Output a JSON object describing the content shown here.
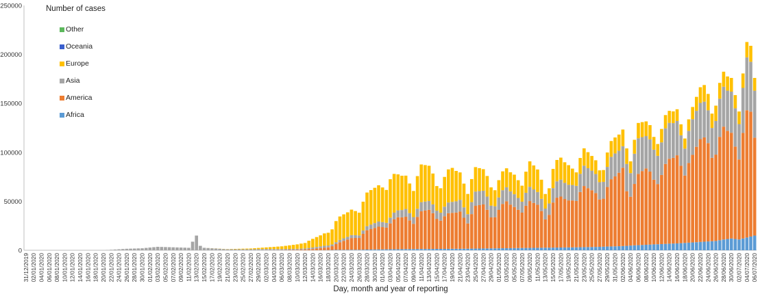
{
  "chart_data": {
    "type": "bar",
    "stacked": true,
    "legend_title": "Number of cases",
    "xlabel": "Day, month and year of reporting",
    "ylabel": "",
    "ylim": [
      0,
      250000
    ],
    "y_ticks": [
      0,
      50000,
      100000,
      150000,
      200000,
      250000
    ],
    "x_tick_labels": [
      "31/12/2019",
      "02/01/2020",
      "04/01/2020",
      "06/01/2020",
      "08/01/2020",
      "10/01/2020",
      "12/01/2020",
      "14/01/2020",
      "16/01/2020",
      "18/01/2020",
      "20/01/2020",
      "22/01/2020",
      "24/01/2020",
      "26/01/2020",
      "28/01/2020",
      "30/01/2020",
      "01/02/2020",
      "03/02/2020",
      "05/02/2020",
      "07/02/2020",
      "09/02/2020",
      "11/02/2020",
      "13/02/2020",
      "15/02/2020",
      "17/02/2020",
      "19/02/2020",
      "21/02/2020",
      "23/02/2020",
      "25/02/2020",
      "27/02/2020",
      "29/02/2020",
      "02/03/2020",
      "04/03/2020",
      "06/03/2020",
      "08/03/2020",
      "10/03/2020",
      "12/03/2020",
      "14/03/2020",
      "16/03/2020",
      "18/03/2020",
      "20/03/2020",
      "22/03/2020",
      "24/03/2020",
      "26/03/2020",
      "28/03/2020",
      "30/03/2020",
      "01/04/2020",
      "03/04/2020",
      "05/04/2020",
      "07/04/2020",
      "09/04/2020",
      "11/04/2020",
      "13/04/2020",
      "15/04/2020",
      "17/04/2020",
      "19/04/2020",
      "21/04/2020",
      "23/04/2020",
      "25/04/2020",
      "27/04/2020",
      "29/04/2020",
      "01/05/2020",
      "03/05/2020",
      "05/05/2020",
      "07/05/2020",
      "09/05/2020",
      "11/05/2020",
      "13/05/2020",
      "15/05/2020",
      "17/05/2020",
      "19/05/2020",
      "21/05/2020",
      "23/05/2020",
      "25/05/2020",
      "27/05/2020",
      "29/05/2020",
      "31/05/2020",
      "02/06/2020",
      "04/06/2020",
      "06/06/2020",
      "08/06/2020",
      "10/06/2020",
      "12/06/2020",
      "14/06/2020",
      "16/06/2020",
      "18/06/2020",
      "20/06/2020",
      "22/06/2020",
      "24/06/2020",
      "26/06/2020",
      "28/06/2020",
      "30/06/2020",
      "02/07/2020",
      "04/07/2020",
      "06/07/2020"
    ],
    "legend": [
      {
        "name": "Other",
        "color": "#5cb85c"
      },
      {
        "name": "Oceania",
        "color": "#3a5fcd"
      },
      {
        "name": "Europe",
        "color": "#ffc000"
      },
      {
        "name": "Asia",
        "color": "#a5a5a5"
      },
      {
        "name": "America",
        "color": "#ed7d31"
      },
      {
        "name": "Africa",
        "color": "#5b9bd5"
      }
    ],
    "series_order": [
      "Africa",
      "America",
      "Asia",
      "Europe",
      "Oceania",
      "Other"
    ],
    "num_days": 189,
    "key_points": [
      {
        "day": 0,
        "africa": 0,
        "america": 0,
        "asia": 0,
        "europe": 0
      },
      {
        "day": 20,
        "africa": 0,
        "america": 0,
        "asia": 0,
        "europe": 0
      },
      {
        "day": 26,
        "africa": 0,
        "america": 0,
        "asia": 1500,
        "europe": 0
      },
      {
        "day": 30,
        "africa": 0,
        "america": 0,
        "asia": 2000,
        "europe": 0
      },
      {
        "day": 34,
        "africa": 0,
        "america": 0,
        "asia": 3500,
        "europe": 0
      },
      {
        "day": 38,
        "africa": 0,
        "america": 0,
        "asia": 3000,
        "europe": 0
      },
      {
        "day": 42,
        "africa": 0,
        "america": 0,
        "asia": 2500,
        "europe": 0
      },
      {
        "day": 44,
        "africa": 0,
        "america": 0,
        "asia": 15000,
        "europe": 0
      },
      {
        "day": 45,
        "africa": 0,
        "america": 0,
        "asia": 4500,
        "europe": 0
      },
      {
        "day": 46,
        "africa": 0,
        "america": 0,
        "asia": 2500,
        "europe": 0
      },
      {
        "day": 52,
        "africa": 0,
        "america": 0,
        "asia": 1000,
        "europe": 200
      },
      {
        "day": 58,
        "africa": 0,
        "america": 0,
        "asia": 1000,
        "europe": 800
      },
      {
        "day": 62,
        "africa": 0,
        "america": 100,
        "asia": 1200,
        "europe": 1600
      },
      {
        "day": 66,
        "africa": 0,
        "america": 200,
        "asia": 1000,
        "europe": 2800
      },
      {
        "day": 70,
        "africa": 0,
        "america": 500,
        "asia": 1000,
        "europe": 4500
      },
      {
        "day": 74,
        "africa": 0,
        "america": 1200,
        "asia": 1500,
        "europe": 8500
      },
      {
        "day": 78,
        "africa": 200,
        "america": 3000,
        "asia": 2000,
        "europe": 14000
      },
      {
        "day": 80,
        "africa": 400,
        "america": 6000,
        "asia": 2000,
        "europe": 22000
      },
      {
        "day": 84,
        "africa": 500,
        "america": 12000,
        "asia": 3000,
        "europe": 26000
      },
      {
        "day": 86,
        "africa": 500,
        "america": 14000,
        "asia": 3000,
        "europe": 27000
      },
      {
        "day": 88,
        "africa": 700,
        "america": 19000,
        "asia": 4000,
        "europe": 33000
      },
      {
        "day": 90,
        "africa": 800,
        "america": 22000,
        "asia": 5000,
        "europe": 36000
      },
      {
        "day": 94,
        "africa": 1000,
        "america": 27000,
        "asia": 6000,
        "europe": 40000
      },
      {
        "day": 96,
        "africa": 1000,
        "america": 32000,
        "asia": 7000,
        "europe": 36000
      },
      {
        "day": 98,
        "africa": 1200,
        "america": 33000,
        "asia": 8000,
        "europe": 34000
      },
      {
        "day": 100,
        "africa": 1200,
        "america": 30000,
        "asia": 8000,
        "europe": 31000
      },
      {
        "day": 102,
        "africa": 1300,
        "america": 37000,
        "asia": 9000,
        "europe": 37000
      },
      {
        "day": 104,
        "africa": 1300,
        "america": 40000,
        "asia": 9000,
        "europe": 36000
      },
      {
        "day": 106,
        "africa": 1400,
        "america": 33000,
        "asia": 9000,
        "europe": 27000
      },
      {
        "day": 108,
        "africa": 1400,
        "america": 34000,
        "asia": 10000,
        "europe": 31000
      },
      {
        "day": 110,
        "africa": 1500,
        "america": 36000,
        "asia": 11000,
        "europe": 34000
      },
      {
        "day": 112,
        "africa": 1500,
        "america": 38000,
        "asia": 12000,
        "europe": 28000
      },
      {
        "day": 114,
        "africa": 1600,
        "america": 30000,
        "asia": 11000,
        "europe": 24000
      },
      {
        "day": 116,
        "africa": 1700,
        "america": 42000,
        "asia": 14000,
        "europe": 24000
      },
      {
        "day": 118,
        "africa": 1800,
        "america": 45000,
        "asia": 14000,
        "europe": 22000
      },
      {
        "day": 120,
        "africa": 1900,
        "america": 34000,
        "asia": 13000,
        "europe": 20000
      },
      {
        "day": 122,
        "africa": 2000,
        "america": 40000,
        "asia": 13000,
        "europe": 18000
      },
      {
        "day": 124,
        "africa": 2100,
        "america": 47000,
        "asia": 14000,
        "europe": 19000
      },
      {
        "day": 126,
        "africa": 2200,
        "america": 42000,
        "asia": 13000,
        "europe": 20000
      },
      {
        "day": 128,
        "africa": 2300,
        "america": 42000,
        "asia": 13000,
        "europe": 19000
      },
      {
        "day": 130,
        "africa": 2400,
        "america": 46000,
        "asia": 14000,
        "europe": 25000
      },
      {
        "day": 132,
        "africa": 2500,
        "america": 44000,
        "asia": 13000,
        "europe": 23000
      },
      {
        "day": 134,
        "africa": 2600,
        "america": 31000,
        "asia": 12000,
        "europe": 16000
      },
      {
        "day": 136,
        "africa": 2700,
        "america": 47000,
        "asia": 15000,
        "europe": 20000
      },
      {
        "day": 138,
        "africa": 2800,
        "america": 51000,
        "asia": 17000,
        "europe": 22000
      },
      {
        "day": 140,
        "africa": 2900,
        "america": 48000,
        "asia": 16000,
        "europe": 20000
      },
      {
        "day": 142,
        "africa": 3000,
        "america": 55000,
        "asia": 18000,
        "europe": 16000
      },
      {
        "day": 144,
        "africa": 3200,
        "america": 60000,
        "asia": 20000,
        "europe": 17000
      },
      {
        "day": 146,
        "africa": 3300,
        "america": 58000,
        "asia": 20000,
        "europe": 15000
      },
      {
        "day": 148,
        "africa": 3500,
        "america": 52000,
        "asia": 19000,
        "europe": 13000
      },
      {
        "day": 150,
        "africa": 3800,
        "america": 62000,
        "asia": 21000,
        "europe": 15000
      },
      {
        "day": 152,
        "africa": 4000,
        "america": 70000,
        "asia": 23000,
        "europe": 16000
      },
      {
        "day": 154,
        "africa": 4300,
        "america": 80000,
        "asia": 22000,
        "europe": 17000
      },
      {
        "day": 155,
        "africa": 4500,
        "america": 60000,
        "asia": 30000,
        "europe": 17000
      },
      {
        "day": 156,
        "africa": 4800,
        "america": 58000,
        "asia": 28000,
        "europe": 14000
      },
      {
        "day": 158,
        "africa": 5200,
        "america": 70000,
        "asia": 35000,
        "europe": 15000
      },
      {
        "day": 160,
        "africa": 5600,
        "america": 78000,
        "asia": 33000,
        "europe": 15000
      },
      {
        "day": 162,
        "africa": 6000,
        "america": 71000,
        "asia": 33000,
        "europe": 14000
      },
      {
        "day": 164,
        "africa": 6300,
        "america": 72000,
        "asia": 34000,
        "europe": 14000
      },
      {
        "day": 166,
        "africa": 6700,
        "america": 85000,
        "asia": 36000,
        "europe": 12000
      },
      {
        "day": 168,
        "africa": 7000,
        "america": 90000,
        "asia": 35000,
        "europe": 12000
      },
      {
        "day": 170,
        "africa": 7500,
        "america": 80000,
        "asia": 32000,
        "europe": 12000
      },
      {
        "day": 172,
        "africa": 8000,
        "america": 86000,
        "asia": 35000,
        "europe": 12000
      },
      {
        "day": 174,
        "africa": 8500,
        "america": 105000,
        "asia": 37000,
        "europe": 16000
      },
      {
        "day": 176,
        "africa": 9000,
        "america": 108000,
        "asia": 36000,
        "europe": 18000
      },
      {
        "day": 178,
        "africa": 9500,
        "america": 90000,
        "asia": 35000,
        "europe": 16000
      },
      {
        "day": 180,
        "africa": 11000,
        "america": 113000,
        "asia": 40000,
        "europe": 15000
      },
      {
        "day": 182,
        "africa": 12000,
        "america": 108000,
        "asia": 42000,
        "europe": 14000
      },
      {
        "day": 184,
        "africa": 11000,
        "america": 95000,
        "asia": 42000,
        "europe": 15000
      },
      {
        "day": 186,
        "africa": 13000,
        "america": 125000,
        "asia": 52000,
        "europe": 15000
      },
      {
        "day": 187,
        "africa": 14000,
        "america": 125000,
        "asia": 50000,
        "europe": 16000
      },
      {
        "day": 188,
        "africa": 15000,
        "america": 100000,
        "asia": 48000,
        "europe": 13000
      }
    ]
  }
}
